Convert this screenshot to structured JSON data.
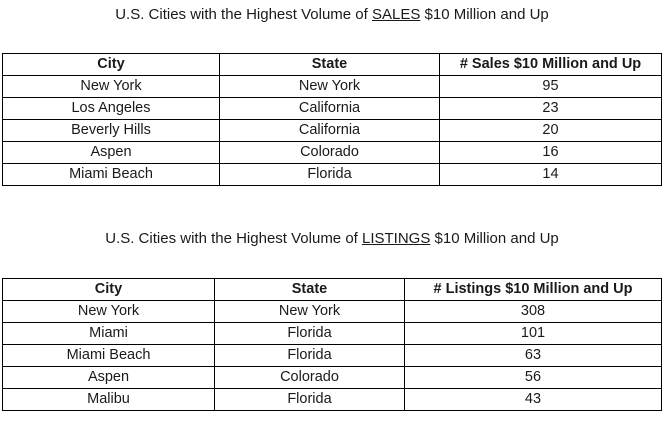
{
  "sales": {
    "title_prefix": "U.S. Cities with the Highest Volume of ",
    "title_emph": "SALES",
    "title_suffix": " $10 Million and Up",
    "headers": [
      "City",
      "State",
      "# Sales $10 Million and Up"
    ],
    "rows": [
      [
        "New York",
        "New York",
        "95"
      ],
      [
        "Los Angeles",
        "California",
        "23"
      ],
      [
        "Beverly Hills",
        "California",
        "20"
      ],
      [
        "Aspen",
        "Colorado",
        "16"
      ],
      [
        "Miami Beach",
        "Florida",
        "14"
      ]
    ]
  },
  "listings": {
    "title_prefix": "U.S. Cities with the Highest Volume of ",
    "title_emph": "LISTINGS",
    "title_suffix": " $10 Million and Up",
    "headers": [
      "City",
      "State",
      "# Listings $10 Million and Up"
    ],
    "rows": [
      [
        "New York",
        "New York",
        "308"
      ],
      [
        "Miami",
        "Florida",
        "101"
      ],
      [
        "Miami Beach",
        "Florida",
        "63"
      ],
      [
        "Aspen",
        "Colorado",
        "56"
      ],
      [
        "Malibu",
        "Florida",
        "43"
      ]
    ]
  }
}
